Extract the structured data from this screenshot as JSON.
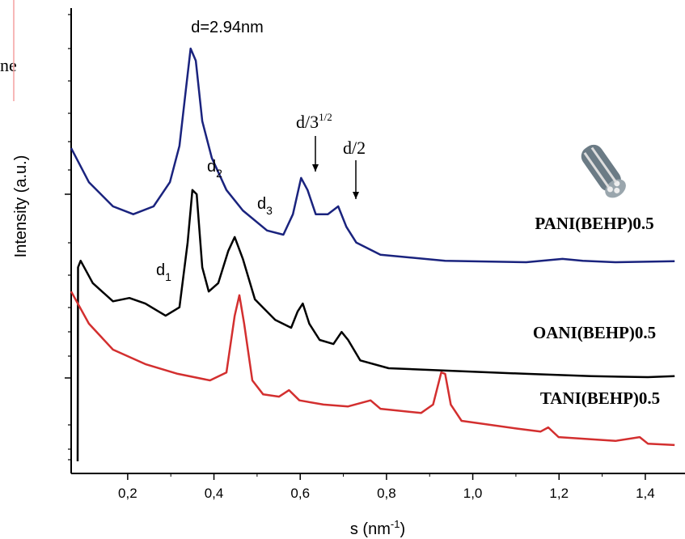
{
  "fragment": "ne",
  "chart_data": {
    "type": "line",
    "xlabel": {
      "text": "s (nm",
      "sup": "-1",
      "tail": ")"
    },
    "ylabel": "Intensity (a.u.)",
    "xlim": [
      0.069,
      1.492
    ],
    "ylim": [
      0,
      100
    ],
    "xticks": [
      {
        "value": 0.2,
        "label": "0,2"
      },
      {
        "value": 0.4,
        "label": "0,4"
      },
      {
        "value": 0.6,
        "label": "0,6"
      },
      {
        "value": 0.8,
        "label": "0,8"
      },
      {
        "value": 1.0,
        "label": "1,0"
      },
      {
        "value": 1.2,
        "label": "1,2"
      },
      {
        "value": 1.4,
        "label": "1,4"
      }
    ],
    "annotations": [
      {
        "text": "d=2.94nm"
      },
      {
        "text": "d",
        "sub": "2"
      },
      {
        "text": "d",
        "sub": "3"
      },
      {
        "text": "d",
        "sub": "1"
      },
      {
        "text": "d/3",
        "sup": "1/2"
      },
      {
        "text": "d/2"
      }
    ],
    "series": [
      {
        "name": "PANI(BEHP)0.5",
        "color": "#1a237e",
        "x": [
          0.069,
          0.11,
          0.166,
          0.213,
          0.26,
          0.298,
          0.32,
          0.335,
          0.346,
          0.358,
          0.373,
          0.395,
          0.429,
          0.467,
          0.523,
          0.561,
          0.583,
          0.602,
          0.617,
          0.636,
          0.664,
          0.688,
          0.707,
          0.73,
          0.786,
          0.936,
          1.124,
          1.208,
          1.255,
          1.33,
          1.468
        ],
        "values": [
          69.9,
          62.6,
          57.4,
          55.7,
          57.4,
          62.6,
          70.4,
          82.6,
          91.3,
          88.7,
          75.7,
          67.8,
          60.9,
          56.5,
          52.2,
          51.3,
          55.7,
          63.5,
          60.9,
          55.7,
          55.7,
          57.4,
          53.0,
          49.6,
          47.0,
          45.7,
          45.4,
          46.1,
          45.7,
          45.4,
          45.6
        ]
      },
      {
        "name": "OANI(BEHP)0.5",
        "color": "#000000",
        "x": [
          0.084,
          0.085,
          0.091,
          0.119,
          0.166,
          0.204,
          0.241,
          0.288,
          0.32,
          0.339,
          0.35,
          0.36,
          0.373,
          0.388,
          0.41,
          0.433,
          0.448,
          0.467,
          0.495,
          0.542,
          0.579,
          0.594,
          0.606,
          0.621,
          0.645,
          0.677,
          0.696,
          0.711,
          0.739,
          0.805,
          0.936,
          1.124,
          1.274,
          1.406,
          1.468
        ],
        "values": [
          2.6,
          44.3,
          45.7,
          40.9,
          37.0,
          37.7,
          36.5,
          33.9,
          35.7,
          49.6,
          60.9,
          60.0,
          44.3,
          39.1,
          40.9,
          47.8,
          50.8,
          46.1,
          37.4,
          33.0,
          31.3,
          34.8,
          36.5,
          32.2,
          28.7,
          27.8,
          30.4,
          28.7,
          24.3,
          22.6,
          22.1,
          21.4,
          20.9,
          20.7,
          20.9
        ]
      },
      {
        "name": "TANI(BEHP)0.5",
        "color": "#d32f2f",
        "x": [
          0.069,
          0.11,
          0.166,
          0.241,
          0.316,
          0.391,
          0.429,
          0.448,
          0.459,
          0.47,
          0.489,
          0.514,
          0.551,
          0.574,
          0.598,
          0.654,
          0.711,
          0.763,
          0.786,
          0.88,
          0.908,
          0.927,
          0.936,
          0.949,
          0.974,
          1.105,
          1.157,
          1.175,
          1.199,
          1.331,
          1.387,
          1.406,
          1.468
        ],
        "values": [
          39.1,
          32.2,
          26.6,
          23.5,
          21.4,
          20.0,
          21.7,
          33.9,
          38.3,
          32.2,
          20.0,
          17.0,
          16.5,
          17.9,
          15.7,
          14.8,
          14.4,
          15.7,
          13.9,
          13.0,
          14.8,
          21.7,
          21.4,
          14.8,
          11.3,
          9.6,
          9.0,
          9.9,
          7.8,
          7.0,
          7.8,
          6.4,
          6.1
        ]
      }
    ]
  }
}
